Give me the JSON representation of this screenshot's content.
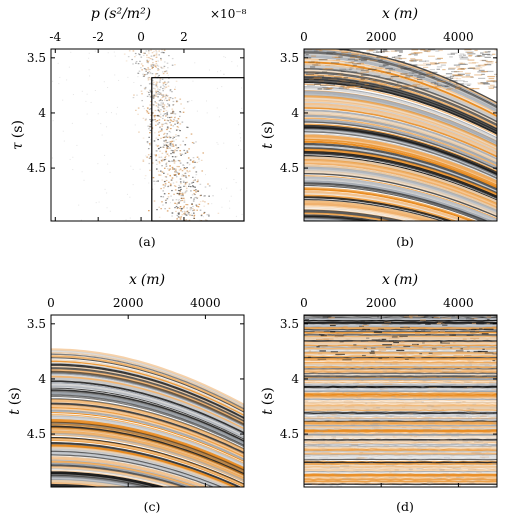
{
  "chart_data": [
    {
      "type": "heatmap",
      "panel_label": "(a)",
      "xlabel_var": "p",
      "xlabel_unit": "(s²/m²)",
      "x_scale_note": "×10⁻⁸",
      "ylabel_var": "τ",
      "ylabel_unit": "(s)",
      "x_ticks": [
        "-4",
        "-2",
        "0",
        "2"
      ],
      "y_ticks": [
        "3.5",
        "4",
        "4.5"
      ],
      "xlim": [
        -4.2,
        4.8
      ],
      "ylim": [
        3.42,
        4.98
      ],
      "highlight_box": {
        "x": [
          0.5,
          4.8
        ],
        "y": [
          3.68,
          4.98
        ]
      }
    },
    {
      "type": "heatmap",
      "panel_label": "(b)",
      "xlabel_var": "x",
      "xlabel_unit": "(m)",
      "ylabel_var": "t",
      "ylabel_unit": "(s)",
      "x_ticks": [
        "0",
        "2000",
        "4000"
      ],
      "y_ticks": [
        "3.5",
        "4",
        "4.5"
      ],
      "xlim": [
        0,
        5000
      ],
      "ylim": [
        3.42,
        4.98
      ]
    },
    {
      "type": "heatmap",
      "panel_label": "(c)",
      "xlabel_var": "x",
      "xlabel_unit": "(m)",
      "ylabel_var": "t",
      "ylabel_unit": "(s)",
      "x_ticks": [
        "0",
        "2000",
        "4000"
      ],
      "y_ticks": [
        "3.5",
        "4",
        "4.5"
      ],
      "xlim": [
        0,
        5000
      ],
      "ylim": [
        3.42,
        4.98
      ]
    },
    {
      "type": "heatmap",
      "panel_label": "(d)",
      "xlabel_var": "x",
      "xlabel_unit": "(m)",
      "ylabel_var": "t",
      "ylabel_unit": "(s)",
      "x_ticks": [
        "0",
        "2000",
        "4000"
      ],
      "y_ticks": [
        "3.5",
        "4",
        "4.5"
      ],
      "xlim": [
        0,
        5000
      ],
      "ylim": [
        3.42,
        4.98
      ]
    }
  ],
  "colors": {
    "positive": "#e8891c",
    "negative": "#1a1a1a",
    "mid": "#9aa0a8",
    "background": "#ffffff"
  }
}
